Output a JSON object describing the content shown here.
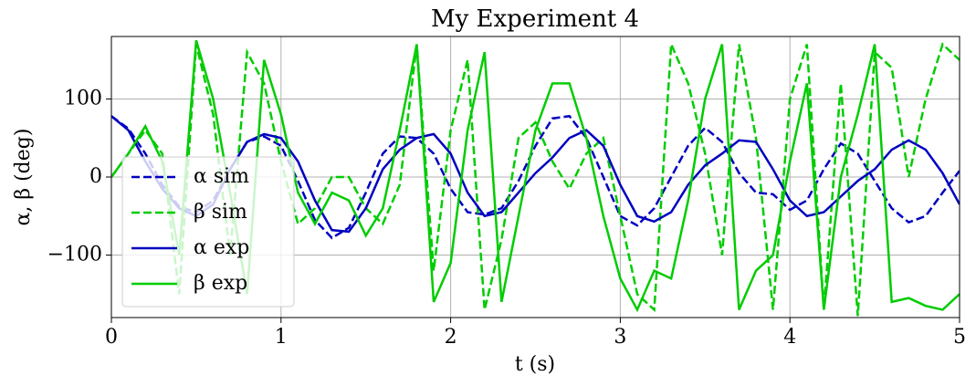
{
  "chart_data": {
    "type": "line",
    "title": "My Experiment 4",
    "xlabel": "t (s)",
    "ylabel": "α, β (deg)",
    "x": [
      0,
      0.1,
      0.2,
      0.3,
      0.4,
      0.5,
      0.6,
      0.7,
      0.8,
      0.9,
      1.0,
      1.1,
      1.2,
      1.3,
      1.4,
      1.5,
      1.6,
      1.7,
      1.8,
      1.9,
      2.0,
      2.1,
      2.2,
      2.3,
      2.4,
      2.5,
      2.6,
      2.7,
      2.8,
      2.9,
      3.0,
      3.1,
      3.2,
      3.3,
      3.4,
      3.5,
      3.6,
      3.7,
      3.8,
      3.9,
      4.0,
      4.1,
      4.2,
      4.3,
      4.4,
      4.5,
      4.6,
      4.7,
      4.8,
      4.9,
      5.0
    ],
    "series": [
      {
        "name": "α sim",
        "color": "#0000c0",
        "linestyle": "dashed",
        "values": [
          78,
          62,
          30,
          -10,
          -38,
          -45,
          -30,
          10,
          45,
          52,
          40,
          -5,
          -55,
          -78,
          -65,
          -20,
          30,
          52,
          50,
          30,
          -15,
          -45,
          -48,
          -40,
          -5,
          40,
          75,
          78,
          50,
          0,
          -50,
          -62,
          -40,
          0,
          40,
          63,
          45,
          5,
          -20,
          -22,
          -42,
          -30,
          10,
          43,
          30,
          -5,
          -40,
          -58,
          -50,
          -20,
          8
        ]
      },
      {
        "name": "β sim",
        "color": "#00cc00",
        "linestyle": "dashed",
        "values": [
          0,
          30,
          60,
          30,
          -150,
          170,
          80,
          -100,
          160,
          120,
          20,
          -60,
          -40,
          0,
          0,
          -40,
          -60,
          -10,
          170,
          -120,
          60,
          150,
          -170,
          -80,
          50,
          70,
          20,
          -15,
          30,
          50,
          -50,
          -150,
          -170,
          170,
          120,
          30,
          -100,
          170,
          50,
          -170,
          100,
          170,
          -170,
          120,
          -178,
          160,
          140,
          0,
          100,
          170,
          150
        ]
      },
      {
        "name": "α exp",
        "color": "#0000c0",
        "linestyle": "solid",
        "values": [
          78,
          60,
          20,
          -15,
          -40,
          -50,
          -35,
          10,
          45,
          55,
          50,
          20,
          -30,
          -68,
          -70,
          -40,
          10,
          35,
          50,
          55,
          30,
          -20,
          -50,
          -45,
          -20,
          5,
          25,
          50,
          60,
          40,
          -10,
          -50,
          -57,
          -45,
          -10,
          15,
          30,
          47,
          45,
          10,
          -30,
          -50,
          -45,
          -25,
          -5,
          10,
          35,
          47,
          35,
          5,
          -35
        ]
      },
      {
        "name": "β exp",
        "color": "#00cc00",
        "linestyle": "solid",
        "values": [
          0,
          30,
          65,
          20,
          -100,
          175,
          100,
          -20,
          -150,
          150,
          80,
          -20,
          -60,
          -20,
          -30,
          -75,
          -40,
          60,
          170,
          -160,
          -110,
          60,
          160,
          -160,
          -50,
          60,
          120,
          120,
          50,
          -50,
          -130,
          -170,
          -120,
          -130,
          -30,
          100,
          170,
          -170,
          -120,
          -100,
          20,
          120,
          -170,
          0,
          80,
          170,
          -160,
          -155,
          -165,
          -170,
          -150
        ]
      }
    ],
    "xlim": [
      0,
      5
    ],
    "ylim": [
      -180,
      180
    ],
    "xticks": [
      0,
      1,
      2,
      3,
      4,
      5
    ],
    "yticks": [
      {
        "value": -100,
        "label": "−100"
      },
      0,
      100
    ],
    "grid": true,
    "legend": "center left"
  }
}
